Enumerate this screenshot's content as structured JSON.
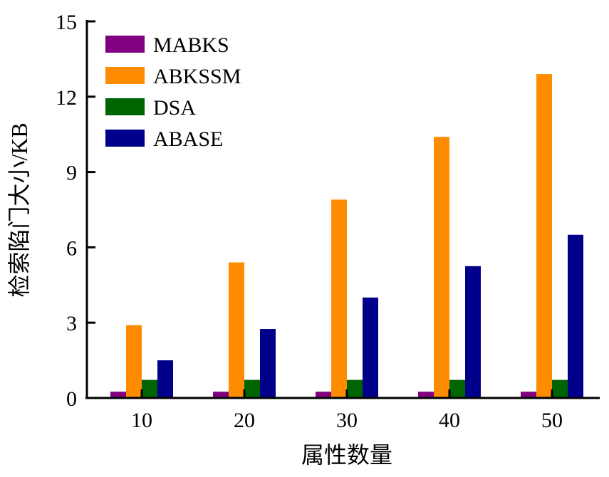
{
  "chart_data": {
    "type": "bar",
    "title": "",
    "xlabel": "属性数量",
    "ylabel": "检索陷门大小/KB",
    "categories": [
      "10",
      "20",
      "30",
      "40",
      "50"
    ],
    "ylim": [
      0,
      15
    ],
    "yticks": [
      0,
      3,
      6,
      9,
      12,
      15
    ],
    "grid": false,
    "legend_position": "top-left",
    "series": [
      {
        "name": "MABKS",
        "color": "#800080",
        "values": [
          0.25,
          0.25,
          0.25,
          0.25,
          0.25
        ]
      },
      {
        "name": "ABKSSM",
        "color": "#FF8C00",
        "values": [
          2.9,
          5.4,
          7.9,
          10.4,
          12.9
        ]
      },
      {
        "name": "DSA",
        "color": "#006400",
        "values": [
          0.72,
          0.72,
          0.72,
          0.72,
          0.72
        ]
      },
      {
        "name": "ABASE",
        "color": "#00008B",
        "values": [
          1.5,
          2.75,
          4.0,
          5.25,
          6.5
        ]
      }
    ]
  }
}
